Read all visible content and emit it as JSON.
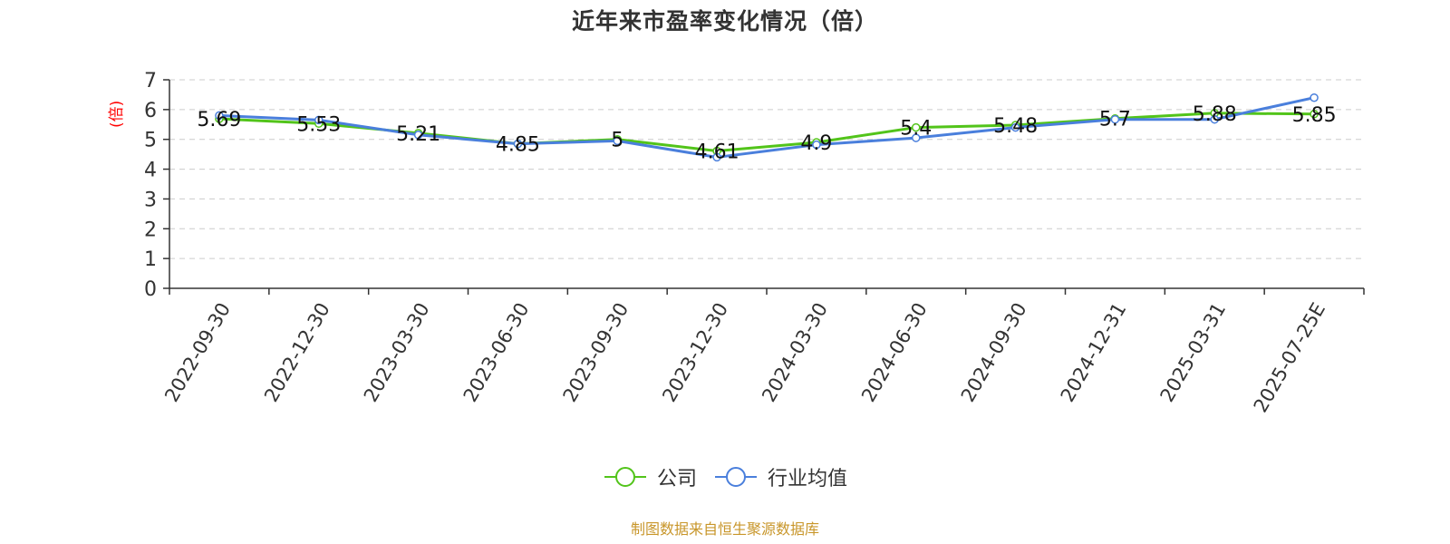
{
  "chart_data": {
    "type": "line",
    "title": "近年来市盈率变化情况（倍）",
    "ylabel": "(倍)",
    "xlabel": "",
    "categories": [
      "2022-09-30",
      "2022-12-30",
      "2023-03-30",
      "2023-06-30",
      "2023-09-30",
      "2023-12-30",
      "2024-03-30",
      "2024-06-30",
      "2024-09-30",
      "2024-12-31",
      "2025-03-31",
      "2025-07-25E"
    ],
    "y_ticks": [
      "0",
      "1",
      "2",
      "3",
      "4",
      "5",
      "6",
      "7"
    ],
    "ylim": [
      0,
      7
    ],
    "grid": true,
    "legend_position": "bottom",
    "series": [
      {
        "name": "公司",
        "color": "#52c41a",
        "values": [
          5.69,
          5.53,
          5.21,
          4.85,
          5.0,
          4.61,
          4.9,
          5.4,
          5.48,
          5.7,
          5.88,
          5.85
        ],
        "labels": [
          "5.69",
          "5.53",
          "5.21",
          "4.85",
          "5",
          "4.61",
          "4.9",
          "5.4",
          "5.48",
          "5.7",
          "5.88",
          "5.85"
        ]
      },
      {
        "name": "行业均值",
        "color": "#4a7fdc",
        "values": [
          5.8,
          5.65,
          5.15,
          4.85,
          4.95,
          4.4,
          4.82,
          5.05,
          5.4,
          5.67,
          5.67,
          6.4
        ]
      }
    ]
  },
  "source_note": "制图数据来自恒生聚源数据库"
}
